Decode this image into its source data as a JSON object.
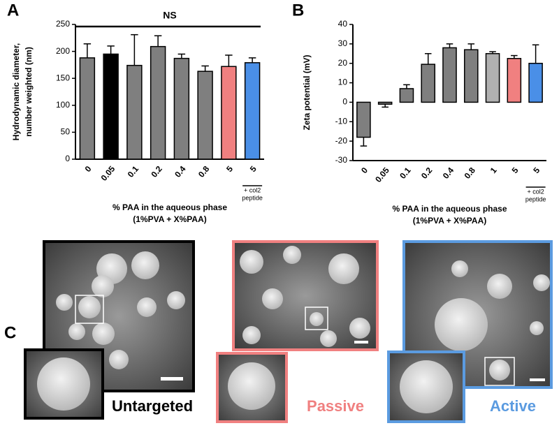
{
  "chart_data": [
    {
      "type": "bar",
      "panel_label": "A",
      "ylabel": [
        "Hydrodynamic diameter,",
        "number weighted (nm)"
      ],
      "xlabel": [
        "% PAA in the aqueous phase",
        "(1%PVA + X%PAA)"
      ],
      "categories": [
        "0",
        "0.05",
        "0.1",
        "0.2",
        "0.4",
        "0.8",
        "5",
        "5"
      ],
      "values": [
        188,
        195,
        174,
        209,
        187,
        163,
        172,
        179
      ],
      "errors": [
        26,
        15,
        57,
        20,
        8,
        10,
        21,
        9
      ],
      "colors": [
        "#7f7f7f",
        "#000000",
        "#7f7f7f",
        "#7f7f7f",
        "#7f7f7f",
        "#7f7f7f",
        "#f08080",
        "#4a8fe7"
      ],
      "ylim": [
        0,
        250
      ],
      "yticks": [
        0,
        50,
        100,
        150,
        200,
        250
      ],
      "annotation": "NS",
      "category_note": [
        "+ col2",
        "peptide"
      ]
    },
    {
      "type": "bar",
      "panel_label": "B",
      "ylabel": [
        "Zeta potential (mV)"
      ],
      "xlabel": [
        "% PAA in the aqueous phase",
        "(1%PVA + X%PAA)"
      ],
      "categories": [
        "0",
        "0.05",
        "0.1",
        "0.2",
        "0.4",
        "0.8",
        "1",
        "5",
        "5"
      ],
      "values": [
        -18,
        -1,
        7,
        19.5,
        28,
        27,
        25,
        22.5,
        20
      ],
      "errors": [
        4.5,
        1.5,
        2,
        5.5,
        2,
        3,
        1,
        1.5,
        9.5
      ],
      "colors": [
        "#7f7f7f",
        "#7f7f7f",
        "#7f7f7f",
        "#7f7f7f",
        "#7f7f7f",
        "#7f7f7f",
        "#b0b0b0",
        "#f08080",
        "#4a8fe7"
      ],
      "ylim": [
        -30,
        40
      ],
      "yticks": [
        -30,
        -20,
        -10,
        0,
        10,
        20,
        30,
        40
      ],
      "category_note": [
        "+ col2",
        "peptide"
      ]
    }
  ],
  "images": {
    "panel_label": "C",
    "captions": [
      "Untargeted",
      "Passive",
      "Active"
    ]
  }
}
